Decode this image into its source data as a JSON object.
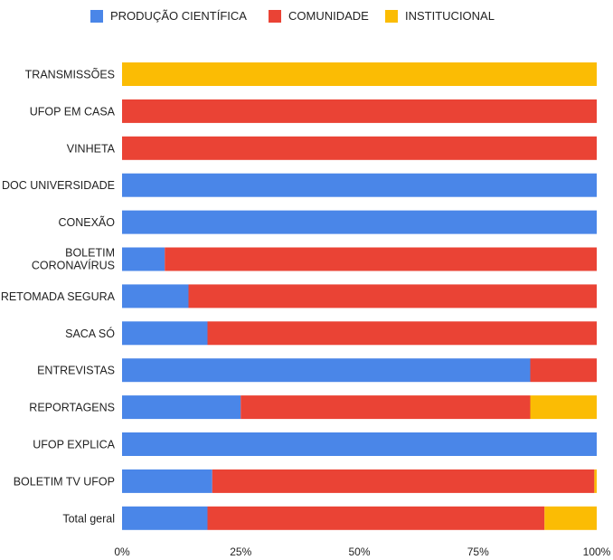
{
  "chart_data": {
    "type": "bar",
    "orientation": "horizontal",
    "stacked": "percent",
    "legend_position": "top",
    "grid": false,
    "xlim": [
      0,
      100
    ],
    "x_ticks": [
      "0%",
      "25%",
      "50%",
      "75%",
      "100%"
    ],
    "categories": [
      "TRANSMISSÕES",
      "UFOP EM CASA",
      "VINHETA",
      "DOC UNIVERSIDADE",
      "CONEXÃO",
      "BOLETIM CORONAVÍRUS",
      "RETOMADA SEGURA",
      "SACA SÓ",
      "ENTREVISTAS",
      "REPORTAGENS",
      "UFOP EXPLICA",
      "BOLETIM TV UFOP",
      "Total geral"
    ],
    "series": [
      {
        "name": "PRODUÇÃO CIENTÍFICA",
        "color": "#4A86E8",
        "values": [
          0,
          0,
          0,
          100,
          100,
          9,
          14,
          18,
          86,
          25,
          100,
          19,
          18
        ]
      },
      {
        "name": "COMUNIDADE",
        "color": "#EA4335",
        "values": [
          0,
          100,
          100,
          0,
          0,
          91,
          86,
          82,
          14,
          61,
          0,
          80.5,
          71
        ]
      },
      {
        "name": "INSTITUCIONAL",
        "color": "#FBBC04",
        "values": [
          100,
          0,
          0,
          0,
          0,
          0,
          0,
          0,
          0,
          14,
          0,
          0.5,
          11
        ]
      }
    ]
  }
}
